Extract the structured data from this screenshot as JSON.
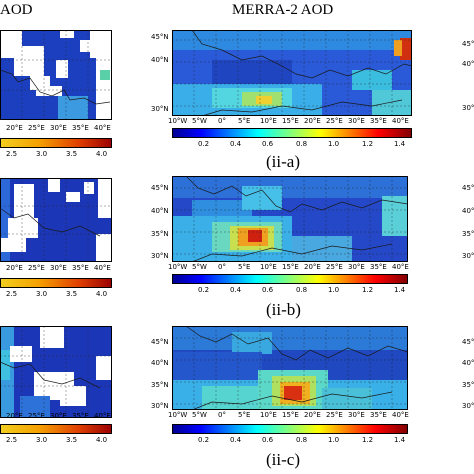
{
  "headers": {
    "left_partial": "AOD",
    "center": "MERRA-2 AOD"
  },
  "lat_ticks": [
    "45°N",
    "40°N",
    "35°N",
    "30°N"
  ],
  "right_lat_ticks": [
    "45°",
    "40°",
    "35°",
    "30°"
  ],
  "lon_ticks_center": [
    "10°W",
    "5°W",
    "0°",
    "5°E",
    "10°E",
    "15°E",
    "20°E",
    "25°E",
    "30°E",
    "35°E",
    "40°E"
  ],
  "lon_ticks_left": [
    "20°E",
    "25°E",
    "30°E",
    "35°E",
    "40°E"
  ],
  "colorbar_ticks_center": [
    "0.2",
    "0.4",
    "0.6",
    "0.8",
    "1.0",
    "1.2",
    "1.4"
  ],
  "colorbar_ticks_left": [
    "2.5",
    "3.0",
    "3.5",
    "4.0"
  ],
  "panel_labels": [
    "(ii-a)",
    "(ii-b)",
    "(ii-c)"
  ],
  "colors": {
    "low": "#1a1aa8",
    "mid": "#3fd0e8",
    "high": "#f0c020",
    "peak": "#b00000"
  }
}
